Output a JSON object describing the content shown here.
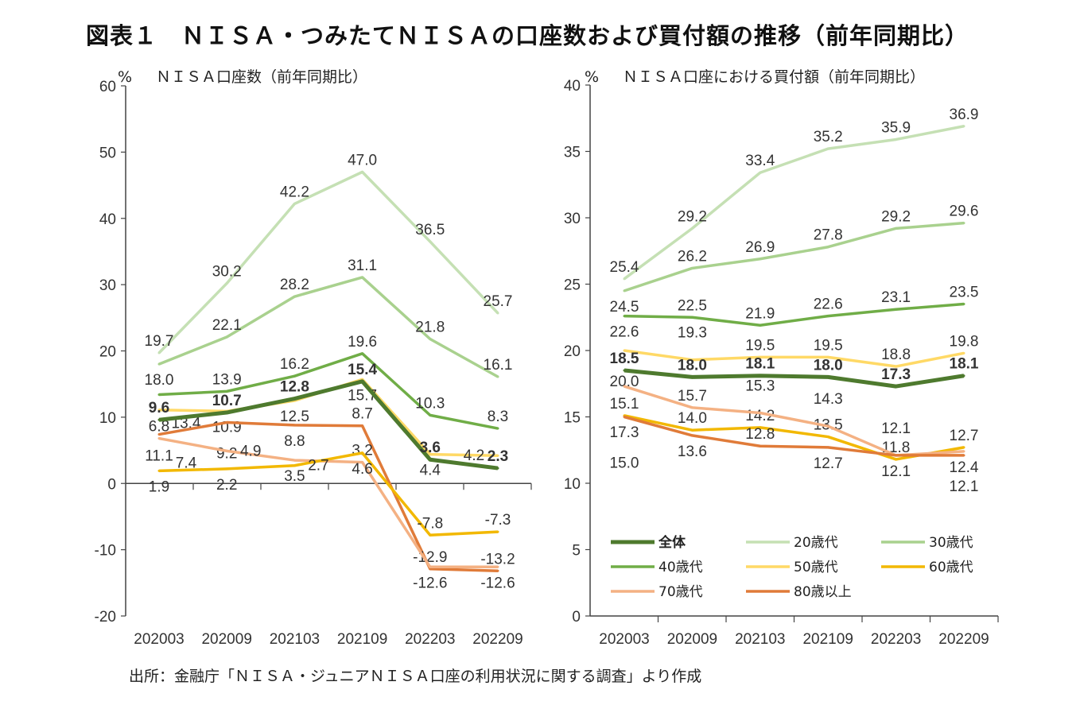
{
  "title": "図表１　ＮＩＳＡ・つみたてＮＩＳＡの口座数および買付額の推移（前年同期比）",
  "source": "出所：金融庁「ＮＩＳＡ・ジュニアＮＩＳＡ口座の利用状況に関する調査」より作成",
  "chart_data": [
    {
      "type": "line",
      "title": "ＮＩＳＡ口座数（前年同期比）",
      "ylabel": "%",
      "ylim": [
        -20,
        60
      ],
      "yticks": [
        -20,
        -10,
        0,
        10,
        20,
        30,
        40,
        50,
        60
      ],
      "categories": [
        "202003",
        "202009",
        "202103",
        "202109",
        "202203",
        "202209"
      ],
      "series": [
        {
          "name": "20歳代",
          "color": "#c5e0b4",
          "values": [
            19.7,
            30.2,
            42.2,
            47.0,
            36.5,
            25.7
          ]
        },
        {
          "name": "30歳代",
          "color": "#a9d18e",
          "values": [
            18.0,
            22.1,
            28.2,
            31.1,
            21.8,
            16.1
          ]
        },
        {
          "name": "40歳代",
          "color": "#70ad47",
          "values": [
            13.4,
            13.9,
            16.2,
            19.6,
            10.3,
            8.3
          ]
        },
        {
          "name": "50歳代",
          "color": "#ffd966",
          "values": [
            11.1,
            10.9,
            12.5,
            15.7,
            4.4,
            4.2
          ]
        },
        {
          "name": "80歳以上",
          "color": "#e07b39",
          "values": [
            7.4,
            9.2,
            8.8,
            8.7,
            -12.9,
            -13.2
          ]
        },
        {
          "name": "70歳代",
          "color": "#f4b183",
          "values": [
            6.8,
            4.9,
            3.5,
            3.2,
            -12.6,
            -12.6
          ]
        },
        {
          "name": "60歳代",
          "color": "#f2b800",
          "values": [
            1.9,
            2.2,
            2.7,
            4.6,
            -7.8,
            -7.3
          ]
        },
        {
          "name": "全体",
          "color": "#4e7a2e",
          "values": [
            9.6,
            10.7,
            12.8,
            15.4,
            3.6,
            2.3
          ]
        }
      ]
    },
    {
      "type": "line",
      "title": "ＮＩＳＡ口座における買付額（前年同期比）",
      "ylabel": "%",
      "ylim": [
        0,
        40
      ],
      "yticks": [
        0,
        5,
        10,
        15,
        20,
        25,
        30,
        35,
        40
      ],
      "categories": [
        "202003",
        "202009",
        "202103",
        "202109",
        "202203",
        "202209"
      ],
      "legend": "bottom-inside",
      "series": [
        {
          "name": "全体",
          "color": "#4e7a2e",
          "values": [
            18.5,
            18.0,
            18.1,
            18.0,
            17.3,
            18.1
          ]
        },
        {
          "name": "20歳代",
          "color": "#c5e0b4",
          "values": [
            25.4,
            29.2,
            33.4,
            35.2,
            35.9,
            36.9
          ]
        },
        {
          "name": "30歳代",
          "color": "#a9d18e",
          "values": [
            24.5,
            26.2,
            26.9,
            27.8,
            29.2,
            29.6
          ]
        },
        {
          "name": "40歳代",
          "color": "#70ad47",
          "values": [
            22.6,
            22.5,
            21.9,
            22.6,
            23.1,
            23.5
          ]
        },
        {
          "name": "50歳代",
          "color": "#ffd966",
          "values": [
            20.0,
            19.3,
            19.5,
            19.5,
            18.8,
            19.8
          ]
        },
        {
          "name": "60歳代",
          "color": "#f2b800",
          "values": [
            15.1,
            14.0,
            14.2,
            13.5,
            11.8,
            12.7
          ]
        },
        {
          "name": "70歳代",
          "color": "#f4b183",
          "values": [
            17.3,
            15.7,
            15.3,
            14.3,
            12.1,
            12.4
          ]
        },
        {
          "name": "80歳以上",
          "color": "#e07b39",
          "values": [
            15.0,
            13.6,
            12.8,
            12.7,
            12.1,
            12.1
          ]
        }
      ]
    }
  ]
}
